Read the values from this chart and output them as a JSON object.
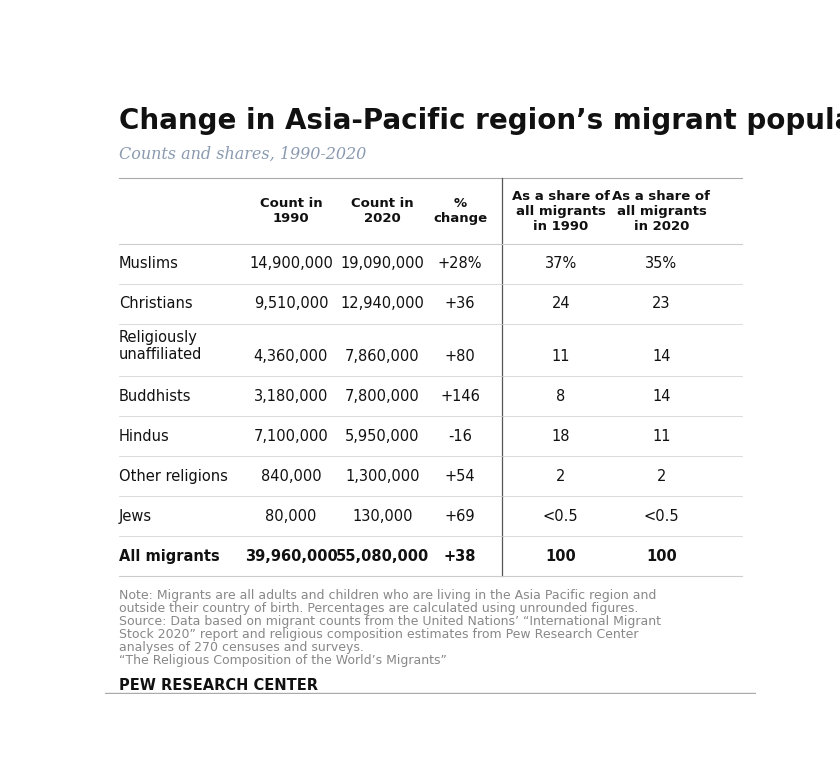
{
  "title": "Change in Asia-Pacific region’s migrant population",
  "subtitle": "Counts and shares, 1990-2020",
  "col_headers": [
    "Count in\n1990",
    "Count in\n2020",
    "%\nchange",
    "As a share of\nall migrants\nin 1990",
    "As a share of\nall migrants\nin 2020"
  ],
  "rows": [
    {
      "label": "Muslims",
      "bold": false,
      "two_line": false,
      "values": [
        "14,900,000",
        "19,090,000",
        "+28%",
        "37%",
        "35%"
      ]
    },
    {
      "label": "Christians",
      "bold": false,
      "two_line": false,
      "values": [
        "9,510,000",
        "12,940,000",
        "+36",
        "24",
        "23"
      ]
    },
    {
      "label": "Religiously\nunaffiliated",
      "bold": false,
      "two_line": true,
      "values": [
        "4,360,000",
        "7,860,000",
        "+80",
        "11",
        "14"
      ]
    },
    {
      "label": "Buddhists",
      "bold": false,
      "two_line": false,
      "values": [
        "3,180,000",
        "7,800,000",
        "+146",
        "8",
        "14"
      ]
    },
    {
      "label": "Hindus",
      "bold": false,
      "two_line": false,
      "values": [
        "7,100,000",
        "5,950,000",
        "-16",
        "18",
        "11"
      ]
    },
    {
      "label": "Other religions",
      "bold": false,
      "two_line": false,
      "values": [
        "840,000",
        "1,300,000",
        "+54",
        "2",
        "2"
      ]
    },
    {
      "label": "Jews",
      "bold": false,
      "two_line": false,
      "values": [
        "80,000",
        "130,000",
        "+69",
        "<0.5",
        "<0.5"
      ]
    },
    {
      "label": "All migrants",
      "bold": true,
      "two_line": false,
      "values": [
        "39,960,000",
        "55,080,000",
        "+38",
        "100",
        "100"
      ]
    }
  ],
  "note_lines": [
    "Note: Migrants are all adults and children who are living in the Asia Pacific region and",
    "outside their country of birth. Percentages are calculated using unrounded figures.",
    "Source: Data based on migrant counts from the United Nations’ “International Migrant",
    "Stock 2020” report and religious composition estimates from Pew Research Center",
    "analyses of 270 censuses and surveys.",
    "“The Religious Composition of the World’s Migrants”"
  ],
  "footer": "PEW RESEARCH CENTER",
  "bg_color": "#ffffff",
  "title_color": "#111111",
  "subtitle_color": "#8a9ab0",
  "header_color": "#111111",
  "row_label_color": "#111111",
  "note_color": "#888888",
  "footer_color": "#111111",
  "divider_color": "#555555",
  "line_color": "#cccccc",
  "top_border_color": "#aaaaaa"
}
